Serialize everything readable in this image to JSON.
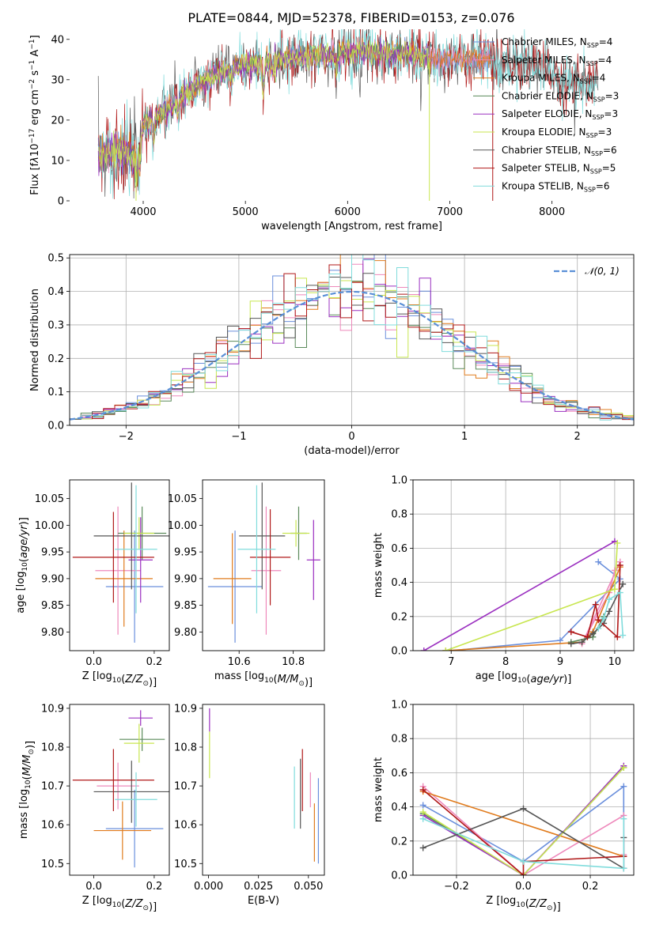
{
  "title": "PLATE=0844, MJD=52378, FIBERID=0153, z=0.076",
  "colors": {
    "Chabrier MILES": "#6a8fdc",
    "Salpeter MILES": "#ee88bb",
    "Kroupa MILES": "#e07b1d",
    "Chabrier ELODIE": "#5a8a5a",
    "Salpeter ELODIE": "#9b30c0",
    "Kroupa ELODIE": "#c8e650",
    "Chabrier STELIB": "#555555",
    "Salpeter STELIB": "#b01818",
    "Kroupa STELIB": "#80dcdc",
    "normal": "#5a8fd6"
  },
  "chart_data": [
    {
      "type": "line",
      "id": "spectrum",
      "xlabel": "wavelength [Angstrom, rest frame]",
      "ylabel_html": "Flux [f<tspan font-style='italic'>λ</tspan>10<tspan dy='-5' font-size='9'>−17</tspan><tspan dy='5'> erg cm</tspan><tspan dy='-5' font-size='9'>−2</tspan><tspan dy='5'> s</tspan><tspan dy='-5' font-size='9'>−1</tspan><tspan dy='5'> A</tspan><tspan dy='-5' font-size='9'>−1</tspan><tspan dy='5'>]</tspan>",
      "xlim": [
        3280,
        8800
      ],
      "ylim": [
        0,
        42.5
      ],
      "xticks": [
        4000,
        5000,
        6000,
        7000,
        8000
      ],
      "yticks": [
        0,
        10,
        20,
        30,
        40
      ],
      "legend_position": "right",
      "legend": [
        {
          "key": "Chabrier MILES",
          "label": "Chabrier MILES, N",
          "sub": "SSP",
          "n": "=4"
        },
        {
          "key": "Salpeter MILES",
          "label": "Salpeter MILES, N",
          "sub": "SSP",
          "n": "=4"
        },
        {
          "key": "Kroupa MILES",
          "label": "Kroupa MILES, N",
          "sub": "SSP",
          "n": "=4"
        },
        {
          "key": "Chabrier ELODIE",
          "label": "Chabrier ELODIE, N",
          "sub": "SSP",
          "n": "=3"
        },
        {
          "key": "Salpeter ELODIE",
          "label": "Salpeter ELODIE, N",
          "sub": "SSP",
          "n": "=3"
        },
        {
          "key": "Kroupa ELODIE",
          "label": "Kroupa ELODIE, N",
          "sub": "SSP",
          "n": "=3"
        },
        {
          "key": "Chabrier STELIB",
          "label": "Chabrier STELIB, N",
          "sub": "SSP",
          "n": "=6"
        },
        {
          "key": "Salpeter STELIB",
          "label": "Salpeter STELIB, N",
          "sub": "SSP",
          "n": "=5"
        },
        {
          "key": "Kroupa STELIB",
          "label": "Kroupa STELIB, N",
          "sub": "SSP",
          "n": "=6"
        }
      ],
      "continuum": [
        [
          3560,
          11
        ],
        [
          3700,
          12
        ],
        [
          3800,
          12.5
        ],
        [
          3900,
          11
        ],
        [
          3960,
          12.5
        ],
        [
          4000,
          19
        ],
        [
          4200,
          22
        ],
        [
          4400,
          26
        ],
        [
          4600,
          29.5
        ],
        [
          4800,
          32
        ],
        [
          5000,
          33.5
        ],
        [
          5200,
          34.5
        ],
        [
          5500,
          35.5
        ],
        [
          5800,
          36
        ],
        [
          6000,
          37
        ],
        [
          6300,
          36.5
        ],
        [
          6600,
          36.5
        ],
        [
          6800,
          35.5
        ],
        [
          7000,
          35
        ],
        [
          7200,
          35
        ],
        [
          7400,
          35
        ],
        [
          7600,
          34
        ],
        [
          7900,
          33
        ],
        [
          8100,
          30
        ],
        [
          8300,
          29
        ],
        [
          8450,
          30
        ]
      ],
      "flux_drops": [
        {
          "key": "Kroupa ELODIE",
          "wave": 3930
        },
        {
          "key": "Kroupa ELODIE",
          "wave": 6800
        },
        {
          "key": "Salpeter STELIB",
          "wave": 7420
        }
      ]
    },
    {
      "type": "histogram",
      "id": "residuals",
      "xlabel": "(data-model)/error",
      "ylabel": "Normed distribution",
      "xlim": [
        -2.5,
        2.5
      ],
      "ylim": [
        0,
        0.51
      ],
      "xticks": [
        -2,
        -1,
        0,
        1,
        2
      ],
      "yticks": [
        0.0,
        0.1,
        0.2,
        0.3,
        0.4,
        0.5
      ],
      "grid": true,
      "bin_width": 0.1,
      "legend_position": "top-right",
      "legend": [
        {
          "key": "normal",
          "label": "N(0, 1)"
        }
      ]
    },
    {
      "type": "scatter",
      "id": "age_vs_Z",
      "xlabel": "Z [log10(Z/Z⊙)]",
      "ylabel": "age  [log10(age/yr)]",
      "xlim": [
        -0.08,
        0.25
      ],
      "ylim": [
        9.765,
        10.085
      ],
      "xticks": [
        0.0,
        0.2
      ],
      "yticks": [
        9.8,
        9.85,
        9.9,
        9.95,
        10.0,
        10.05
      ],
      "points": [
        {
          "key": "Chabrier MILES",
          "x": 0.135,
          "y": 9.885,
          "xe": 0.095,
          "ye": 0.105
        },
        {
          "key": "Salpeter MILES",
          "x": 0.08,
          "y": 9.915,
          "xe": 0.075,
          "ye": 0.12
        },
        {
          "key": "Kroupa MILES",
          "x": 0.1,
          "y": 9.9,
          "xe": 0.095,
          "ye": 0.09
        },
        {
          "key": "Chabrier ELODIE",
          "x": 0.16,
          "y": 9.985,
          "xe": 0.08,
          "ye": 0.05
        },
        {
          "key": "Salpeter ELODIE",
          "x": 0.155,
          "y": 9.935,
          "xe": 0.04,
          "ye": 0.08
        },
        {
          "key": "Kroupa ELODIE",
          "x": 0.15,
          "y": 9.985,
          "xe": 0.05,
          "ye": 0.03
        },
        {
          "key": "Chabrier STELIB",
          "x": 0.125,
          "y": 9.98,
          "xe": 0.125,
          "ye": 0.1
        },
        {
          "key": "Salpeter STELIB",
          "x": 0.065,
          "y": 9.94,
          "xe": 0.135,
          "ye": 0.085
        },
        {
          "key": "Kroupa STELIB",
          "x": 0.14,
          "y": 9.955,
          "xe": 0.07,
          "ye": 0.12
        }
      ]
    },
    {
      "type": "scatter",
      "id": "age_vs_mass",
      "xlabel": "mass [log10(M/M⊙)]",
      "ylabel": "",
      "xlim": [
        10.465,
        10.915
      ],
      "ylim": [
        9.765,
        10.085
      ],
      "xticks": [
        10.6,
        10.8
      ],
      "yticks": [
        9.8,
        9.85,
        9.9,
        9.95,
        10.0,
        10.05
      ],
      "points": [
        {
          "key": "Chabrier MILES",
          "x": 10.585,
          "y": 9.885,
          "xe": 0.1,
          "ye": 0.105
        },
        {
          "key": "Salpeter MILES",
          "x": 10.7,
          "y": 9.915,
          "xe": 0.055,
          "ye": 0.12
        },
        {
          "key": "Kroupa MILES",
          "x": 10.575,
          "y": 9.9,
          "xe": 0.07,
          "ye": 0.085
        },
        {
          "key": "Chabrier ELODIE",
          "x": 10.82,
          "y": 9.985,
          "xe": 0.03,
          "ye": 0.05
        },
        {
          "key": "Salpeter ELODIE",
          "x": 10.875,
          "y": 9.935,
          "xe": 0.025,
          "ye": 0.075
        },
        {
          "key": "Kroupa ELODIE",
          "x": 10.81,
          "y": 9.985,
          "xe": 0.05,
          "ye": 0.025
        },
        {
          "key": "Chabrier STELIB",
          "x": 10.685,
          "y": 9.98,
          "xe": 0.085,
          "ye": 0.1
        },
        {
          "key": "Salpeter STELIB",
          "x": 10.715,
          "y": 9.94,
          "xe": 0.075,
          "ye": 0.09
        },
        {
          "key": "Kroupa STELIB",
          "x": 10.665,
          "y": 9.955,
          "xe": 0.07,
          "ye": 0.12
        }
      ]
    },
    {
      "type": "line",
      "id": "weight_vs_age",
      "xlabel": "age  [log10(age/yr)]",
      "ylabel": "mass weight",
      "xlim": [
        6.3,
        10.35
      ],
      "ylim": [
        0,
        1.0
      ],
      "xticks": [
        7,
        8,
        9,
        10
      ],
      "yticks": [
        0.0,
        0.2,
        0.4,
        0.6,
        0.8,
        1.0
      ],
      "grid": true,
      "series": [
        {
          "key": "Chabrier MILES",
          "points": [
            [
              9.7,
              0.52
            ],
            [
              10.1,
              0.42
            ],
            [
              9.0,
              0.06
            ],
            [
              7.0,
              0.0
            ]
          ]
        },
        {
          "key": "Salpeter MILES",
          "points": [
            [
              10.1,
              0.52
            ],
            [
              9.4,
              0.04
            ],
            [
              9.9,
              0.34
            ],
            [
              10.0,
              0.47
            ]
          ]
        },
        {
          "key": "Kroupa MILES",
          "points": [
            [
              10.1,
              0.49
            ],
            [
              9.6,
              0.11
            ],
            [
              9.4,
              0.05
            ],
            [
              6.9,
              0.0
            ]
          ]
        },
        {
          "key": "Chabrier ELODIE",
          "points": [
            [
              9.8,
              0.2
            ],
            [
              9.6,
              0.08
            ],
            [
              9.2,
              0.05
            ]
          ]
        },
        {
          "key": "Salpeter ELODIE",
          "points": [
            [
              10.0,
              0.64
            ],
            [
              6.5,
              0.0
            ]
          ]
        },
        {
          "key": "Kroupa ELODIE",
          "points": [
            [
              10.05,
              0.63
            ],
            [
              10.0,
              0.36
            ],
            [
              6.9,
              0.0
            ]
          ]
        },
        {
          "key": "Chabrier STELIB",
          "points": [
            [
              10.15,
              0.39
            ],
            [
              9.9,
              0.23
            ],
            [
              9.8,
              0.16
            ],
            [
              9.6,
              0.1
            ],
            [
              9.4,
              0.05
            ],
            [
              9.2,
              0.04
            ]
          ]
        },
        {
          "key": "Salpeter STELIB",
          "points": [
            [
              10.1,
              0.5
            ],
            [
              10.05,
              0.08
            ],
            [
              9.7,
              0.18
            ],
            [
              9.65,
              0.27
            ],
            [
              9.5,
              0.08
            ],
            [
              9.2,
              0.11
            ]
          ]
        },
        {
          "key": "Kroupa STELIB",
          "points": [
            [
              10.15,
              0.09
            ],
            [
              10.1,
              0.34
            ],
            [
              9.9,
              0.3
            ],
            [
              9.8,
              0.19
            ],
            [
              9.7,
              0.13
            ]
          ]
        }
      ]
    },
    {
      "type": "scatter",
      "id": "mass_vs_Z",
      "xlabel": "Z [log10(Z/Z⊙)]",
      "ylabel": "mass [log10(M/M⊙)]",
      "xlim": [
        -0.08,
        0.25
      ],
      "ylim": [
        10.47,
        10.91
      ],
      "xticks": [
        0.0,
        0.2
      ],
      "yticks": [
        10.5,
        10.6,
        10.7,
        10.8,
        10.9
      ],
      "points": [
        {
          "key": "Chabrier MILES",
          "x": 0.135,
          "y": 10.59,
          "xe": 0.095,
          "ye": 0.1
        },
        {
          "key": "Salpeter MILES",
          "x": 0.08,
          "y": 10.7,
          "xe": 0.07,
          "ye": 0.06
        },
        {
          "key": "Kroupa MILES",
          "x": 0.095,
          "y": 10.585,
          "xe": 0.095,
          "ye": 0.075
        },
        {
          "key": "Chabrier ELODIE",
          "x": 0.16,
          "y": 10.82,
          "xe": 0.075,
          "ye": 0.03
        },
        {
          "key": "Salpeter ELODIE",
          "x": 0.155,
          "y": 10.875,
          "xe": 0.04,
          "ye": 0.02
        },
        {
          "key": "Kroupa ELODIE",
          "x": 0.15,
          "y": 10.81,
          "xe": 0.05,
          "ye": 0.05
        },
        {
          "key": "Chabrier STELIB",
          "x": 0.125,
          "y": 10.685,
          "xe": 0.125,
          "ye": 0.08
        },
        {
          "key": "Salpeter STELIB",
          "x": 0.065,
          "y": 10.715,
          "xe": 0.135,
          "ye": 0.08
        },
        {
          "key": "Kroupa STELIB",
          "x": 0.14,
          "y": 10.665,
          "xe": 0.07,
          "ye": 0.07
        }
      ]
    },
    {
      "type": "scatter",
      "id": "mass_vs_ebv",
      "xlabel": "E(B-V)",
      "ylabel": "",
      "xlim": [
        -0.003,
        0.058
      ],
      "ylim": [
        10.47,
        10.91
      ],
      "xticks": [
        0.0,
        0.025,
        0.05
      ],
      "yticks": [
        10.5,
        10.6,
        10.7,
        10.8,
        10.9
      ],
      "points": [
        {
          "key": "Chabrier MILES",
          "x": 0.055,
          "y": 10.61,
          "ye": 0.11
        },
        {
          "key": "Salpeter MILES",
          "x": 0.051,
          "y": 10.69,
          "ye": 0.045
        },
        {
          "key": "Kroupa MILES",
          "x": 0.053,
          "y": 10.58,
          "ye": 0.075
        },
        {
          "key": "Salpeter ELODIE",
          "x": 0.0005,
          "y": 10.87,
          "ye": 0.03
        },
        {
          "key": "Kroupa ELODIE",
          "x": 0.0005,
          "y": 10.78,
          "ye": 0.06
        },
        {
          "key": "Chabrier STELIB",
          "x": 0.046,
          "y": 10.68,
          "ye": 0.09
        },
        {
          "key": "Salpeter STELIB",
          "x": 0.047,
          "y": 10.715,
          "ye": 0.08
        },
        {
          "key": "Kroupa STELIB",
          "x": 0.043,
          "y": 10.67,
          "ye": 0.08
        }
      ]
    },
    {
      "type": "line",
      "id": "weight_vs_Z",
      "xlabel": "Z [log10(Z/Z⊙)]",
      "ylabel": "mass weight",
      "xlim": [
        -0.33,
        0.33
      ],
      "ylim": [
        0,
        1.0
      ],
      "xticks": [
        -0.2,
        0.0,
        0.2
      ],
      "yticks": [
        0.0,
        0.2,
        0.4,
        0.6,
        0.8,
        1.0
      ],
      "grid": true,
      "series": [
        {
          "key": "Chabrier MILES",
          "points": [
            [
              -0.3,
              0.41
            ],
            [
              0.0,
              0.08
            ],
            [
              0.3,
              0.52
            ],
            [
              0.3,
              0.04
            ]
          ]
        },
        {
          "key": "Salpeter MILES",
          "points": [
            [
              -0.3,
              0.52
            ],
            [
              0.0,
              0.0
            ],
            [
              0.3,
              0.35
            ],
            [
              0.3,
              0.12
            ]
          ]
        },
        {
          "key": "Kroupa MILES",
          "points": [
            [
              -0.3,
              0.49
            ],
            [
              0.3,
              0.11
            ]
          ]
        },
        {
          "key": "Chabrier ELODIE",
          "points": [
            [
              -0.3,
              0.36
            ],
            [
              0.0,
              0.0
            ],
            [
              0.3,
              0.63
            ]
          ]
        },
        {
          "key": "Salpeter ELODIE",
          "points": [
            [
              -0.3,
              0.35
            ],
            [
              0.0,
              0.0
            ],
            [
              0.3,
              0.64
            ]
          ]
        },
        {
          "key": "Kroupa ELODIE",
          "points": [
            [
              -0.3,
              0.37
            ],
            [
              0.0,
              0.0
            ],
            [
              0.3,
              0.63
            ]
          ]
        },
        {
          "key": "Chabrier STELIB",
          "points": [
            [
              -0.3,
              0.16
            ],
            [
              0.0,
              0.39
            ],
            [
              0.3,
              0.04
            ],
            [
              0.3,
              0.22
            ]
          ]
        },
        {
          "key": "Salpeter STELIB",
          "points": [
            [
              -0.3,
              0.5
            ],
            [
              0.0,
              0.0
            ],
            [
              0.0,
              0.08
            ],
            [
              0.3,
              0.11
            ]
          ]
        },
        {
          "key": "Kroupa STELIB",
          "points": [
            [
              -0.3,
              0.33
            ],
            [
              0.0,
              0.08
            ],
            [
              0.3,
              0.04
            ],
            [
              0.3,
              0.33
            ]
          ]
        }
      ]
    }
  ]
}
